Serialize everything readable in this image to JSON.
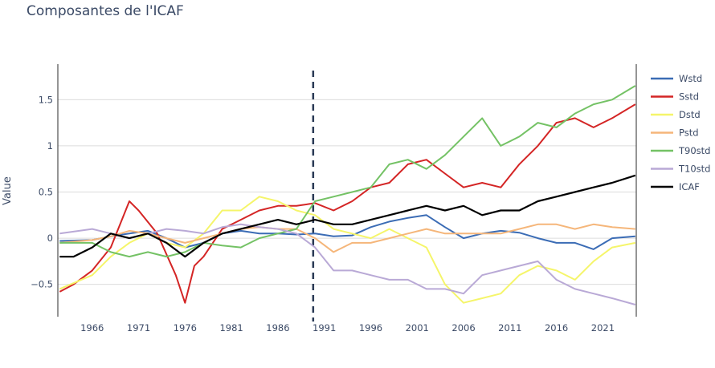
{
  "chart_data": {
    "type": "line",
    "title": "Composantes de l'ICAF",
    "xlabel": "",
    "ylabel": "Value",
    "xlim": [
      1962.3,
      2024.6
    ],
    "ylim": [
      -0.85,
      1.85
    ],
    "xticks": [
      1966,
      1971,
      1976,
      1981,
      1986,
      1991,
      1996,
      2001,
      2006,
      2011,
      2016,
      2021
    ],
    "yticks": [
      -0.5,
      0,
      0.5,
      1,
      1.5
    ],
    "ytick_labels": [
      "−0.5",
      "0",
      "0.5",
      "1",
      "1.5"
    ],
    "vline": 1989.8,
    "grid": true,
    "legend_position": "right",
    "series": [
      {
        "name": "Wstd",
        "color": "#3b6cb5",
        "x": [
          1962.5,
          1966,
          1968,
          1970,
          1972,
          1974,
          1976,
          1978,
          1980,
          1982,
          1984,
          1986,
          1988,
          1990,
          1992,
          1994,
          1996,
          1998,
          2000,
          2002,
          2004,
          2006,
          2008,
          2010,
          2012,
          2014,
          2016,
          2018,
          2020,
          2022,
          2024.5
        ],
        "y": [
          -0.03,
          -0.02,
          0.02,
          0.05,
          0.08,
          0.0,
          -0.1,
          -0.05,
          0.05,
          0.08,
          0.05,
          0.05,
          0.04,
          0.05,
          0.02,
          0.03,
          0.12,
          0.18,
          0.22,
          0.25,
          0.12,
          0.0,
          0.05,
          0.08,
          0.06,
          0.0,
          -0.05,
          -0.05,
          -0.12,
          0.0,
          0.02
        ]
      },
      {
        "name": "Sstd",
        "color": "#d42525",
        "x": [
          1962.5,
          1964,
          1966,
          1968,
          1970,
          1971,
          1973,
          1975,
          1976,
          1977,
          1978,
          1980,
          1982,
          1984,
          1986,
          1988,
          1990,
          1992,
          1994,
          1996,
          1998,
          2000,
          2002,
          2004,
          2006,
          2008,
          2010,
          2012,
          2014,
          2016,
          2018,
          2020,
          2022,
          2024.5
        ],
        "y": [
          -0.58,
          -0.5,
          -0.35,
          -0.1,
          0.4,
          0.3,
          0.05,
          -0.4,
          -0.7,
          -0.3,
          -0.2,
          0.1,
          0.2,
          0.3,
          0.35,
          0.35,
          0.38,
          0.3,
          0.4,
          0.55,
          0.6,
          0.8,
          0.85,
          0.7,
          0.55,
          0.6,
          0.55,
          0.8,
          1.0,
          1.25,
          1.3,
          1.2,
          1.3,
          1.45
        ]
      },
      {
        "name": "Dstd",
        "color": "#f5f56a",
        "x": [
          1962.5,
          1966,
          1968,
          1970,
          1972,
          1974,
          1976,
          1978,
          1980,
          1982,
          1984,
          1986,
          1988,
          1990,
          1992,
          1994,
          1996,
          1998,
          2000,
          2002,
          2004,
          2006,
          2008,
          2010,
          2012,
          2014,
          2016,
          2018,
          2020,
          2022,
          2024.5
        ],
        "y": [
          -0.55,
          -0.4,
          -0.2,
          -0.05,
          0.05,
          -0.05,
          -0.1,
          0.05,
          0.3,
          0.3,
          0.45,
          0.4,
          0.3,
          0.25,
          0.1,
          0.05,
          0.0,
          0.1,
          0.0,
          -0.1,
          -0.5,
          -0.7,
          -0.65,
          -0.6,
          -0.4,
          -0.3,
          -0.35,
          -0.45,
          -0.25,
          -0.1,
          -0.05
        ]
      },
      {
        "name": "Pstd",
        "color": "#f5b67a",
        "x": [
          1962.5,
          1966,
          1968,
          1970,
          1972,
          1974,
          1976,
          1978,
          1980,
          1982,
          1984,
          1986,
          1988,
          1990,
          1992,
          1994,
          1996,
          1998,
          2000,
          2002,
          2004,
          2006,
          2008,
          2010,
          2012,
          2014,
          2016,
          2018,
          2020,
          2022,
          2024.5
        ],
        "y": [
          -0.05,
          -0.02,
          0.02,
          0.08,
          0.05,
          0.0,
          -0.05,
          0.0,
          0.05,
          0.1,
          0.12,
          0.1,
          0.1,
          0.0,
          -0.15,
          -0.05,
          -0.05,
          0.0,
          0.05,
          0.1,
          0.05,
          0.05,
          0.05,
          0.05,
          0.1,
          0.15,
          0.15,
          0.1,
          0.15,
          0.12,
          0.1
        ]
      },
      {
        "name": "T90std",
        "color": "#74c265",
        "x": [
          1962.5,
          1966,
          1968,
          1970,
          1972,
          1974,
          1976,
          1978,
          1980,
          1982,
          1984,
          1986,
          1988,
          1990,
          1992,
          1994,
          1996,
          1998,
          2000,
          2002,
          2004,
          2006,
          2008,
          2010,
          2012,
          2014,
          2016,
          2018,
          2020,
          2022,
          2024.5
        ],
        "y": [
          -0.05,
          -0.05,
          -0.15,
          -0.2,
          -0.15,
          -0.2,
          -0.15,
          -0.05,
          -0.08,
          -0.1,
          0.0,
          0.05,
          0.1,
          0.4,
          0.45,
          0.5,
          0.55,
          0.8,
          0.85,
          0.75,
          0.9,
          1.1,
          1.3,
          1.0,
          1.1,
          1.25,
          1.2,
          1.35,
          1.45,
          1.5,
          1.65
        ]
      },
      {
        "name": "T10std",
        "color": "#b9a9d6",
        "x": [
          1962.5,
          1966,
          1968,
          1970,
          1972,
          1974,
          1976,
          1978,
          1980,
          1982,
          1984,
          1986,
          1988,
          1990,
          1992,
          1994,
          1996,
          1998,
          2000,
          2002,
          2004,
          2006,
          2008,
          2010,
          2012,
          2014,
          2016,
          2018,
          2020,
          2022,
          2024.5
        ],
        "y": [
          0.05,
          0.1,
          0.05,
          0.0,
          0.05,
          0.1,
          0.08,
          0.05,
          0.12,
          0.15,
          0.12,
          0.1,
          0.05,
          -0.1,
          -0.35,
          -0.35,
          -0.4,
          -0.45,
          -0.45,
          -0.55,
          -0.55,
          -0.6,
          -0.4,
          -0.35,
          -0.3,
          -0.25,
          -0.45,
          -0.55,
          -0.6,
          -0.65,
          -0.72
        ]
      },
      {
        "name": "ICAF",
        "color": "#000000",
        "x": [
          1962.5,
          1964,
          1966,
          1968,
          1970,
          1972,
          1974,
          1976,
          1978,
          1980,
          1982,
          1984,
          1986,
          1988,
          1990,
          1992,
          1994,
          1996,
          1998,
          2000,
          2002,
          2004,
          2006,
          2008,
          2010,
          2012,
          2014,
          2016,
          2018,
          2020,
          2022,
          2024.5
        ],
        "y": [
          -0.2,
          -0.2,
          -0.1,
          0.05,
          0.0,
          0.05,
          -0.05,
          -0.2,
          -0.05,
          0.05,
          0.1,
          0.15,
          0.2,
          0.15,
          0.2,
          0.15,
          0.15,
          0.2,
          0.25,
          0.3,
          0.35,
          0.3,
          0.35,
          0.25,
          0.3,
          0.3,
          0.4,
          0.45,
          0.5,
          0.55,
          0.6,
          0.68
        ]
      }
    ]
  }
}
